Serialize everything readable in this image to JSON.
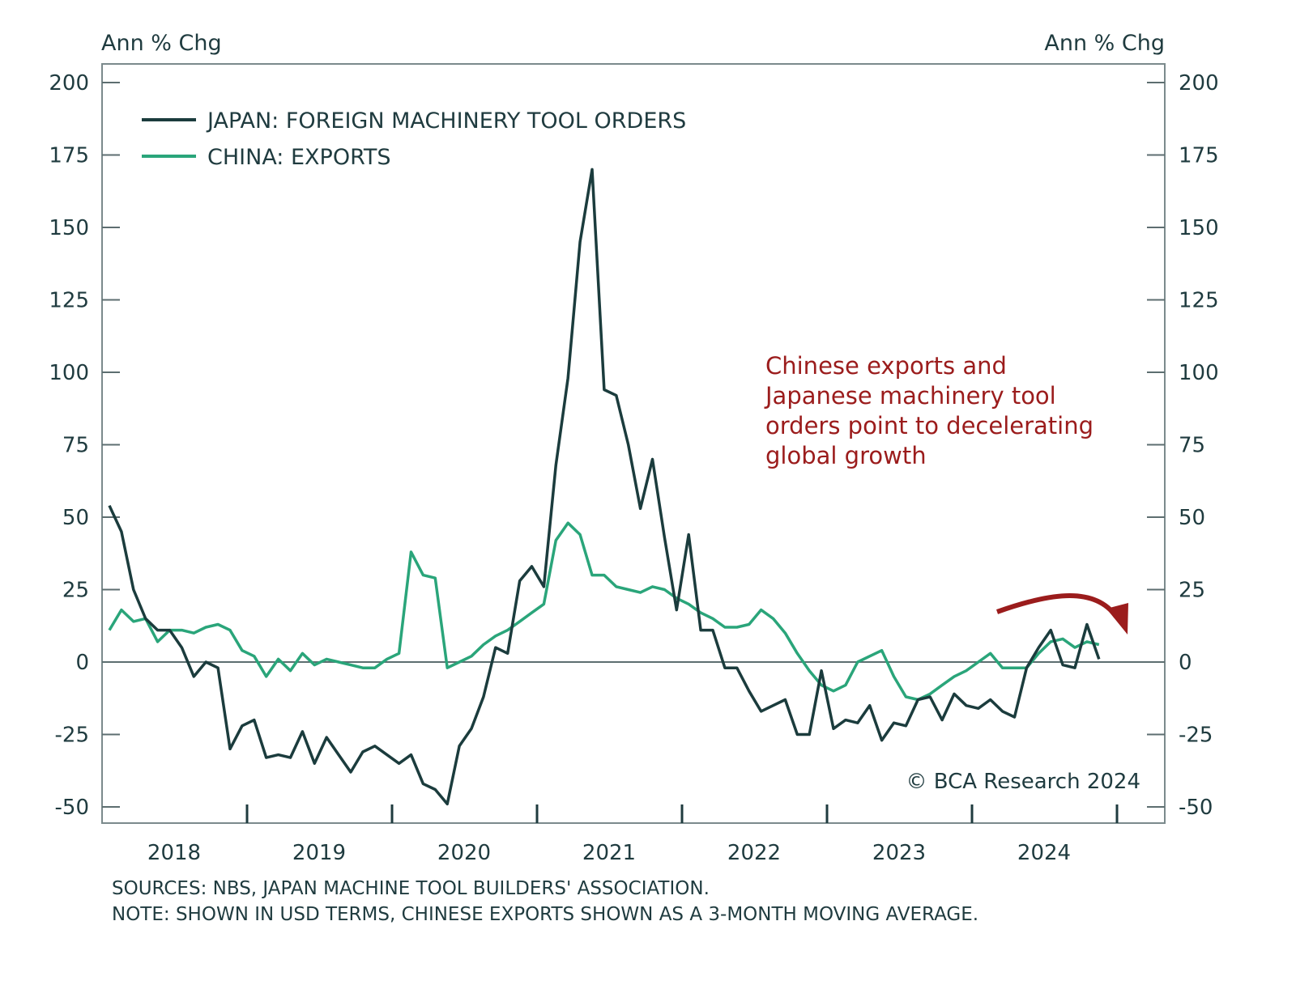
{
  "chart_data": {
    "type": "line",
    "ylabel_left": "Ann % Chg",
    "ylabel_right": "Ann % Chg",
    "ylim": [
      -50,
      200
    ],
    "yticks": [
      200,
      175,
      150,
      125,
      100,
      75,
      50,
      25,
      0,
      -25,
      -50
    ],
    "xtick_labels": [
      "2018",
      "2019",
      "2020",
      "2021",
      "2022",
      "2023",
      "2024"
    ],
    "x_start": "2018-01",
    "x_frequency": "monthly",
    "grid": false,
    "legend_position": "top-left",
    "series": [
      {
        "name": "JAPAN: FOREIGN MACHINERY TOOL ORDERS",
        "color": "#1b3c3d",
        "values": [
          54,
          45,
          25,
          15,
          11,
          11,
          5,
          -5,
          0,
          -2,
          -30,
          -22,
          -20,
          -33,
          -32,
          -33,
          -24,
          -35,
          -26,
          -32,
          -38,
          -31,
          -29,
          -32,
          -35,
          -32,
          -42,
          -44,
          -49,
          -29,
          -23,
          -12,
          5,
          3,
          28,
          33,
          26,
          68,
          98,
          145,
          170,
          94,
          92,
          75,
          53,
          70,
          43,
          18,
          44,
          11,
          11,
          -2,
          -2,
          -10,
          -17,
          -15,
          -13,
          -25,
          -25,
          -3,
          -23,
          -20,
          -21,
          -15,
          -27,
          -21,
          -22,
          -13,
          -12,
          -20,
          -11,
          -15,
          -16,
          -13,
          -17,
          -19,
          -2,
          5,
          11,
          -1,
          -2,
          13,
          1
        ]
      },
      {
        "name": "CHINA: EXPORTS",
        "color": "#2aa57a",
        "values": [
          11,
          18,
          14,
          15,
          7,
          11,
          11,
          10,
          12,
          13,
          11,
          4,
          2,
          -5,
          1,
          -3,
          3,
          -1,
          1,
          0,
          -1,
          -2,
          -2,
          1,
          3,
          38,
          30,
          29,
          -2,
          0,
          2,
          6,
          9,
          11,
          14,
          17,
          20,
          42,
          48,
          44,
          30,
          30,
          26,
          25,
          24,
          26,
          25,
          22,
          20,
          17,
          15,
          12,
          12,
          13,
          18,
          15,
          10,
          3,
          -3,
          -8,
          -10,
          -8,
          0,
          2,
          4,
          -5,
          -12,
          -13,
          -11,
          -8,
          -5,
          -3,
          0,
          3,
          -2,
          -2,
          -2,
          3,
          7,
          8,
          5,
          7,
          6
        ]
      }
    ],
    "annotation": "Chinese exports and Japanese machinery tool orders point to decelerating global growth",
    "annotation_color": "#9b1c1c"
  },
  "copyright": "© BCA Research 2024",
  "sources": "SOURCES: NBS, JAPAN MACHINE TOOL BUILDERS' ASSOCIATION.",
  "note": "NOTE: SHOWN IN USD TERMS, CHINESE EXPORTS SHOWN AS A 3-MONTH MOVING AVERAGE."
}
